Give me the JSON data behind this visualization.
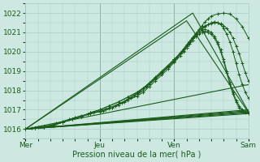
{
  "xlabel": "Pression niveau de la mer( hPa )",
  "xlim": [
    0,
    72
  ],
  "ylim": [
    1015.5,
    1022.5
  ],
  "yticks": [
    1016,
    1017,
    1018,
    1019,
    1020,
    1021,
    1022
  ],
  "xtick_positions": [
    0,
    24,
    48,
    72
  ],
  "xtick_labels": [
    "Mer",
    "Jeu",
    "Ven",
    "Sam"
  ],
  "bg_color": "#cce8e0",
  "grid_color": "#aacccc",
  "line_color": "#1a5c1a",
  "straight_lines": [
    {
      "x": [
        0,
        72
      ],
      "y": [
        1016.0,
        1016.8
      ]
    },
    {
      "x": [
        0,
        72
      ],
      "y": [
        1016.0,
        1016.85
      ]
    },
    {
      "x": [
        0,
        72
      ],
      "y": [
        1016.0,
        1016.9
      ]
    },
    {
      "x": [
        0,
        72
      ],
      "y": [
        1016.0,
        1016.95
      ]
    },
    {
      "x": [
        0,
        72
      ],
      "y": [
        1016.0,
        1017.0
      ]
    },
    {
      "x": [
        0,
        72
      ],
      "y": [
        1016.0,
        1018.3
      ]
    },
    {
      "x": [
        0,
        54,
        72
      ],
      "y": [
        1016.0,
        1022.0,
        1016.9
      ]
    },
    {
      "x": [
        0,
        52,
        72
      ],
      "y": [
        1016.0,
        1021.6,
        1016.85
      ]
    }
  ],
  "dotted_lines": [
    {
      "x": [
        0,
        2,
        4,
        6,
        8,
        10,
        12,
        14,
        16,
        18,
        20,
        22,
        24,
        25,
        26,
        27,
        28,
        29,
        30,
        31,
        32,
        33,
        34,
        35,
        36,
        37,
        38,
        40,
        42,
        44,
        46,
        48,
        50,
        51,
        52,
        53,
        54,
        55,
        56,
        57,
        58,
        59,
        60,
        61,
        62,
        63,
        64,
        65,
        66,
        67,
        68,
        69,
        70,
        71,
        72
      ],
      "y": [
        1016.0,
        1016.05,
        1016.1,
        1016.15,
        1016.2,
        1016.3,
        1016.4,
        1016.5,
        1016.6,
        1016.7,
        1016.75,
        1016.85,
        1016.9,
        1016.95,
        1017.0,
        1017.05,
        1017.1,
        1017.2,
        1017.3,
        1017.35,
        1017.45,
        1017.55,
        1017.65,
        1017.75,
        1017.85,
        1017.95,
        1018.1,
        1018.4,
        1018.7,
        1019.0,
        1019.3,
        1019.6,
        1019.9,
        1020.05,
        1020.2,
        1020.4,
        1020.6,
        1020.8,
        1020.9,
        1021.0,
        1021.05,
        1021.0,
        1020.9,
        1020.7,
        1020.4,
        1020.0,
        1019.5,
        1018.9,
        1018.3,
        1017.8,
        1017.4,
        1017.1,
        1016.95,
        1016.85,
        1016.8
      ]
    },
    {
      "x": [
        0,
        3,
        6,
        9,
        12,
        15,
        18,
        21,
        24,
        26,
        28,
        30,
        32,
        34,
        36,
        38,
        40,
        42,
        44,
        46,
        48,
        49,
        50,
        51,
        52,
        53,
        54,
        55,
        56,
        57,
        58,
        59,
        60,
        61,
        62,
        63,
        64,
        65,
        66,
        67,
        68,
        69,
        70,
        71,
        72
      ],
      "y": [
        1016.0,
        1016.05,
        1016.1,
        1016.2,
        1016.35,
        1016.5,
        1016.65,
        1016.8,
        1016.9,
        1017.0,
        1017.1,
        1017.25,
        1017.4,
        1017.6,
        1017.8,
        1018.0,
        1018.3,
        1018.6,
        1018.9,
        1019.2,
        1019.5,
        1019.7,
        1019.9,
        1020.1,
        1020.3,
        1020.5,
        1020.7,
        1020.85,
        1021.0,
        1021.1,
        1021.15,
        1021.1,
        1021.0,
        1020.8,
        1020.5,
        1020.1,
        1019.6,
        1019.0,
        1018.4,
        1017.9,
        1017.5,
        1017.2,
        1017.0,
        1016.9,
        1016.85
      ]
    },
    {
      "x": [
        0,
        3,
        6,
        9,
        12,
        15,
        18,
        21,
        24,
        27,
        30,
        33,
        36,
        38,
        40,
        42,
        44,
        46,
        48,
        50,
        51,
        52,
        53,
        54,
        55,
        56,
        57,
        58,
        59,
        60,
        61,
        62,
        63,
        64,
        65,
        66,
        67,
        68,
        69,
        70,
        71,
        72
      ],
      "y": [
        1016.0,
        1016.05,
        1016.1,
        1016.2,
        1016.35,
        1016.5,
        1016.65,
        1016.8,
        1016.95,
        1017.1,
        1017.3,
        1017.5,
        1017.7,
        1017.9,
        1018.2,
        1018.5,
        1018.8,
        1019.1,
        1019.45,
        1019.8,
        1020.0,
        1020.2,
        1020.4,
        1020.6,
        1020.8,
        1021.0,
        1021.15,
        1021.3,
        1021.4,
        1021.5,
        1021.55,
        1021.5,
        1021.4,
        1021.2,
        1020.9,
        1020.5,
        1020.0,
        1019.4,
        1018.8,
        1018.3,
        1017.9,
        1017.6
      ]
    },
    {
      "x": [
        0,
        3,
        6,
        9,
        12,
        15,
        18,
        21,
        24,
        27,
        30,
        33,
        36,
        39,
        42,
        44,
        46,
        48,
        50,
        52,
        53,
        54,
        55,
        56,
        57,
        58,
        59,
        60,
        61,
        62,
        63,
        64,
        65,
        66,
        67,
        68,
        69,
        70,
        71,
        72
      ],
      "y": [
        1016.0,
        1016.05,
        1016.1,
        1016.2,
        1016.35,
        1016.5,
        1016.65,
        1016.85,
        1017.0,
        1017.2,
        1017.4,
        1017.65,
        1017.9,
        1018.2,
        1018.6,
        1018.9,
        1019.2,
        1019.55,
        1019.9,
        1020.3,
        1020.5,
        1020.7,
        1020.9,
        1021.1,
        1021.25,
        1021.35,
        1021.4,
        1021.45,
        1021.5,
        1021.5,
        1021.45,
        1021.35,
        1021.2,
        1021.0,
        1020.7,
        1020.3,
        1019.9,
        1019.4,
        1018.9,
        1018.5
      ]
    },
    {
      "x": [
        0,
        3,
        6,
        9,
        12,
        15,
        18,
        21,
        24,
        27,
        30,
        33,
        36,
        39,
        42,
        44,
        46,
        48,
        50,
        52,
        53,
        54,
        55,
        56,
        57,
        58,
        59,
        60,
        62,
        64,
        66,
        68,
        70,
        72
      ],
      "y": [
        1016.0,
        1016.05,
        1016.1,
        1016.2,
        1016.35,
        1016.5,
        1016.65,
        1016.85,
        1017.0,
        1017.2,
        1017.4,
        1017.65,
        1017.9,
        1018.25,
        1018.65,
        1018.95,
        1019.25,
        1019.6,
        1019.95,
        1020.35,
        1020.55,
        1020.75,
        1020.95,
        1021.15,
        1021.35,
        1021.55,
        1021.7,
        1021.85,
        1021.95,
        1022.0,
        1021.95,
        1021.7,
        1021.3,
        1020.7
      ]
    }
  ]
}
